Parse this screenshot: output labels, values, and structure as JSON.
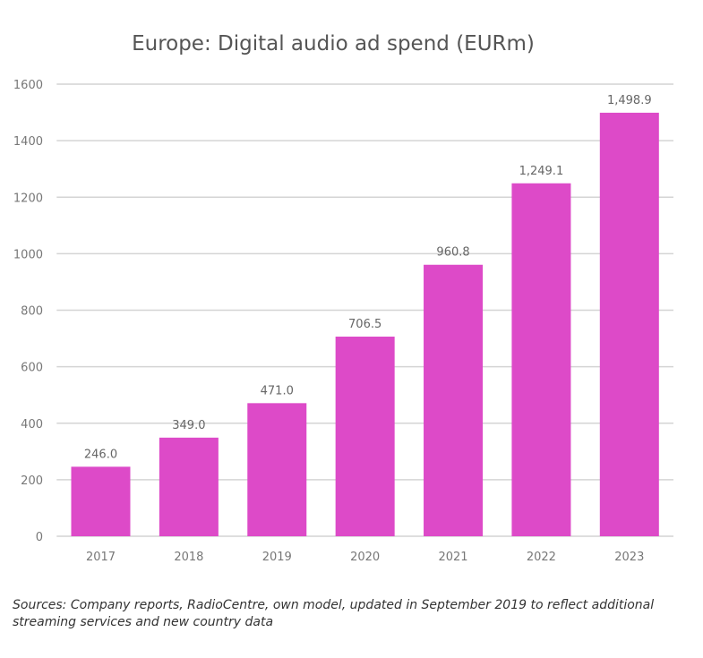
{
  "chart_data": {
    "type": "bar",
    "title": "Europe: Digital audio ad spend (EURm)",
    "xlabel": "",
    "ylabel": "",
    "categories": [
      "2017",
      "2018",
      "2019",
      "2020",
      "2021",
      "2022",
      "2023"
    ],
    "values": [
      246.0,
      349.0,
      471.0,
      706.5,
      960.8,
      1249.1,
      1498.9
    ],
    "data_labels": [
      "246.0",
      "349.0",
      "471.0",
      "706.5",
      "960.8",
      "1,249.1",
      "1,498.9"
    ],
    "ylim": [
      0,
      1600
    ],
    "yticks": [
      0,
      200,
      400,
      600,
      800,
      1000,
      1200,
      1400,
      1600
    ],
    "grid": true,
    "bar_color": "#DD4AC8"
  },
  "source_note": "Sources: Company reports, RadioCentre, own model, updated in September 2019 to reflect additional streaming services and new country data"
}
